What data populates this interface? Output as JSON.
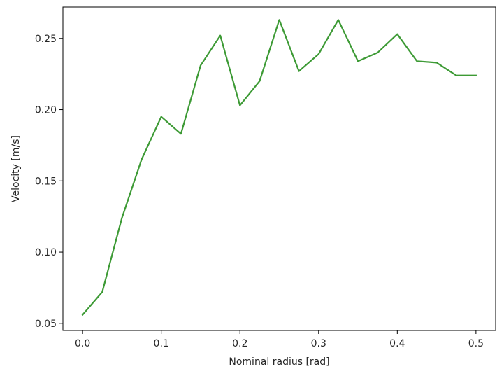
{
  "chart_data": {
    "type": "line",
    "title": "",
    "xlabel": "Nominal radius [rad]",
    "ylabel": "Velocity [m/s]",
    "xlim": [
      -0.025,
      0.525
    ],
    "ylim": [
      0.045,
      0.272
    ],
    "xticks": [
      0.0,
      0.1,
      0.2,
      0.3,
      0.4,
      0.5
    ],
    "xtick_labels": [
      "0.0",
      "0.1",
      "0.2",
      "0.3",
      "0.4",
      "0.5"
    ],
    "yticks": [
      0.05,
      0.1,
      0.15,
      0.2,
      0.25
    ],
    "ytick_labels": [
      "0.05",
      "0.10",
      "0.15",
      "0.20",
      "0.25"
    ],
    "grid": false,
    "legend": "none",
    "series": [
      {
        "color": "#3d9a35",
        "x": [
          0.0,
          0.025,
          0.05,
          0.075,
          0.1,
          0.125,
          0.15,
          0.175,
          0.2,
          0.225,
          0.25,
          0.275,
          0.3,
          0.325,
          0.35,
          0.375,
          0.4,
          0.425,
          0.45,
          0.475,
          0.5
        ],
        "y": [
          0.056,
          0.072,
          0.124,
          0.165,
          0.195,
          0.183,
          0.231,
          0.252,
          0.203,
          0.22,
          0.263,
          0.227,
          0.239,
          0.263,
          0.234,
          0.24,
          0.253,
          0.234,
          0.233,
          0.224,
          0.224
        ]
      }
    ]
  }
}
